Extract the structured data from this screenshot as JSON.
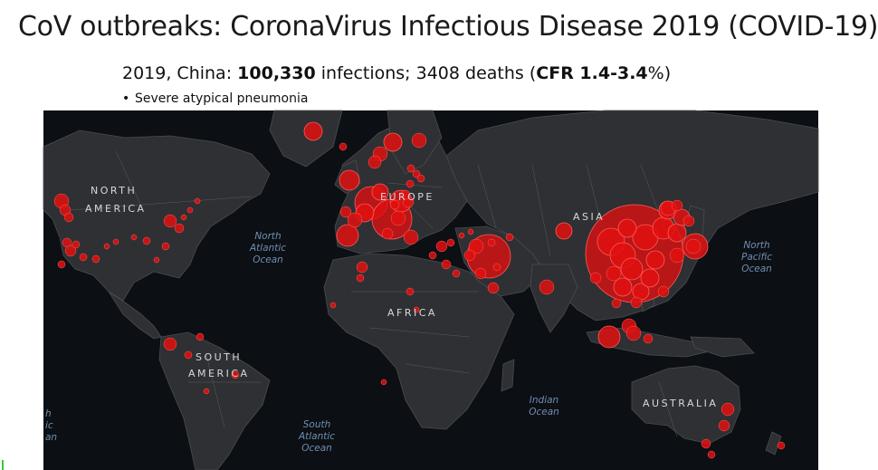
{
  "slide": {
    "title": "CoV outbreaks: CoronaVirus Infectious Disease 2019 (COVID-19)",
    "subtitle": {
      "part1": "2019, China: ",
      "infections": "100,330",
      "part2": " infections; 3408 deaths (",
      "cfr": "CFR 1.4-3.4",
      "part3": "%)"
    },
    "bullet": "Severe atypical pneumonia"
  },
  "map": {
    "theme": "dark",
    "bubble_color": "#e01010",
    "continents": [
      {
        "key": "na1",
        "text": "NORTH"
      },
      {
        "key": "na2",
        "text": "AMERICA"
      },
      {
        "key": "eu",
        "text": "EUROPE"
      },
      {
        "key": "as",
        "text": "ASIA"
      },
      {
        "key": "af",
        "text": "AFRICA"
      },
      {
        "key": "sa1",
        "text": "SOUTH"
      },
      {
        "key": "sa2",
        "text": "AMERICA"
      },
      {
        "key": "au",
        "text": "AUSTRALIA"
      }
    ],
    "oceans": [
      {
        "key": "nat",
        "lines": [
          "North",
          "Atlantic",
          "Ocean"
        ]
      },
      {
        "key": "npa",
        "lines": [
          "North",
          "Pacific",
          "Ocean"
        ]
      },
      {
        "key": "ind",
        "lines": [
          "Indian",
          "Ocean"
        ]
      },
      {
        "key": "sat",
        "lines": [
          "South",
          "Atlantic",
          "Ocean"
        ]
      },
      {
        "key": "spa",
        "lines": [
          "h",
          "ic",
          "an"
        ]
      }
    ]
  }
}
